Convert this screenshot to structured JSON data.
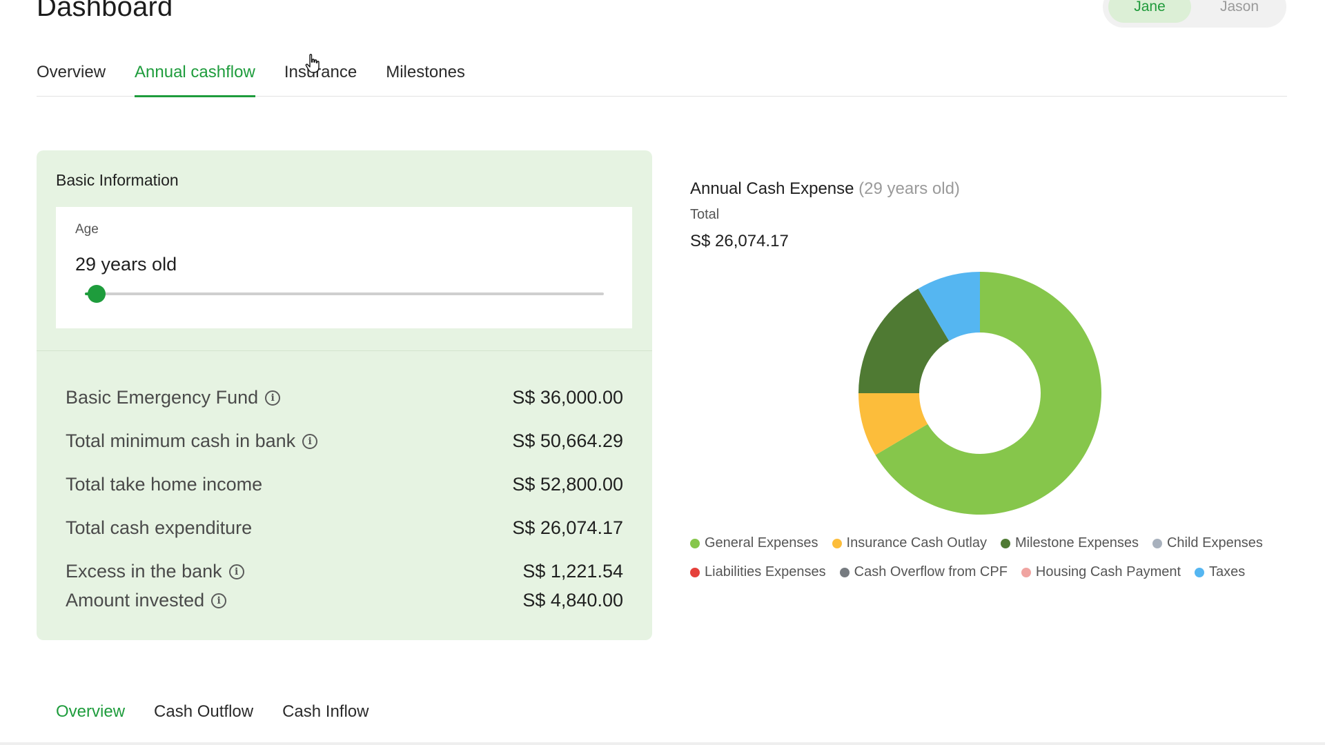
{
  "header": {
    "title": "Dashboard",
    "users": [
      {
        "label": "Jane",
        "active": true
      },
      {
        "label": "Jason",
        "active": false
      }
    ]
  },
  "tabs": [
    {
      "label": "Overview",
      "active": false
    },
    {
      "label": "Annual cashflow",
      "active": true
    },
    {
      "label": "Insurance",
      "active": false
    },
    {
      "label": "Milestones",
      "active": false
    }
  ],
  "basic_info": {
    "title": "Basic Information",
    "age": {
      "label": "Age",
      "value": "29 years old",
      "slider_fraction": 0.022
    },
    "rows": [
      {
        "label": "Basic Emergency Fund",
        "value": "S$ 36,000.00",
        "info": true
      },
      {
        "label": "Total minimum cash in bank",
        "value": "S$ 50,664.29",
        "info": true
      },
      {
        "label": "Total take home income",
        "value": "S$ 52,800.00",
        "info": false
      },
      {
        "label": "Total cash expenditure",
        "value": "S$ 26,074.17",
        "info": false
      },
      {
        "label": "Excess in the bank",
        "value": "S$ 1,221.54",
        "info": true
      },
      {
        "label": "Amount invested",
        "value": "S$ 4,840.00",
        "info": true
      }
    ]
  },
  "chart_data": {
    "type": "pie",
    "title": "Annual Cash Expense",
    "title_suffix": "(29 years old)",
    "total_label": "Total",
    "total_value": "S$ 26,074.17",
    "categories": [
      "General Expenses",
      "Insurance Cash Outlay",
      "Milestone Expenses",
      "Child Expenses",
      "Liabilities Expenses",
      "Cash Overflow from CPF",
      "Housing Cash Payment",
      "Taxes"
    ],
    "values": [
      66.5,
      8.5,
      16.5,
      0,
      0,
      0,
      0,
      8.5
    ],
    "colors": [
      "#86c64b",
      "#fcbd3b",
      "#4f7a33",
      "#a8b1bd",
      "#e5413b",
      "#767b80",
      "#f0a4a1",
      "#55b6f1"
    ],
    "donut": true,
    "legend_position": "bottom"
  },
  "sub_tabs": [
    {
      "label": "Overview",
      "active": true
    },
    {
      "label": "Cash Outflow",
      "active": false
    },
    {
      "label": "Cash Inflow",
      "active": false
    }
  ],
  "icons": {
    "info": "info-icon"
  },
  "colors": {
    "accent": "#1e9c3c",
    "card_bg": "#e6f3e2"
  }
}
